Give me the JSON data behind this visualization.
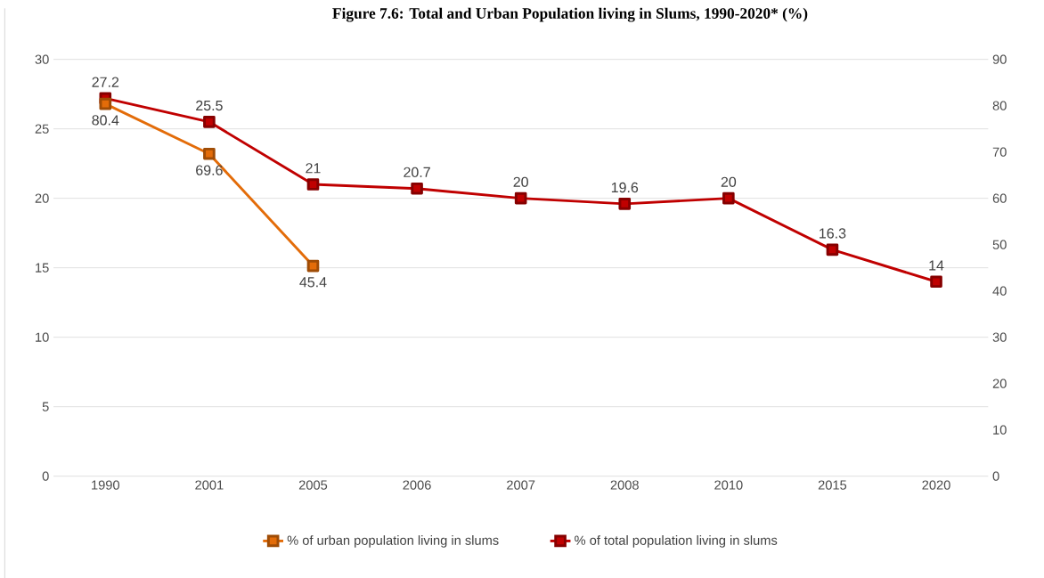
{
  "chart_data": {
    "type": "line",
    "title": "Figure 7.6: Total and Urban Population living in Slums, 1990-2020* (%)",
    "categories": [
      "1990",
      "2001",
      "2005",
      "2006",
      "2007",
      "2008",
      "2010",
      "2015",
      "2020"
    ],
    "series": [
      {
        "name": "% of urban population living in slums",
        "color": "#e36c09",
        "axis": "y2",
        "values": [
          80.4,
          69.6,
          45.4,
          null,
          null,
          null,
          null,
          null,
          null
        ]
      },
      {
        "name": "% of total population living in slums",
        "color": "#c00000",
        "values": [
          27.2,
          25.5,
          21,
          20.7,
          20,
          19.6,
          20,
          16.3,
          14
        ]
      }
    ],
    "ylim": [
      0,
      30
    ],
    "yticks": [
      0,
      5,
      10,
      15,
      20,
      25,
      30
    ],
    "y2lim": [
      0,
      90
    ],
    "y2ticks": [
      0,
      10,
      20,
      30,
      40,
      50,
      60,
      70,
      80,
      90
    ],
    "grid": "y",
    "legend": "bottom",
    "marker": "square",
    "line_style": "solid",
    "data_labels": true
  }
}
